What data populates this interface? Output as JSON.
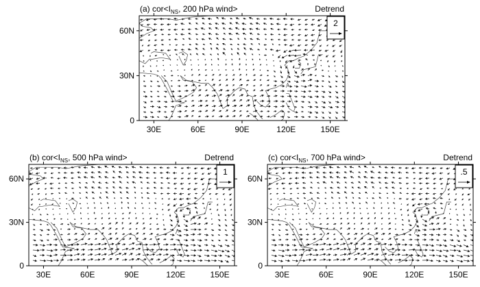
{
  "panels": [
    {
      "id": "a",
      "title_prefix": "(a) cor<I",
      "title_sub": "NS",
      "title_suffix": ", 200 hPa wind>",
      "tag": "Detrend",
      "ref_vector": "2",
      "x_ticks": [
        "30E",
        "60E",
        "90E",
        "120E",
        "150E"
      ],
      "y_ticks": [
        "0",
        "30N",
        "60N"
      ]
    },
    {
      "id": "b",
      "title_prefix": "(b) cor<I",
      "title_sub": "NS",
      "title_suffix": ", 500 hPa wind>",
      "tag": "Detrend",
      "ref_vector": "1",
      "x_ticks": [
        "30E",
        "60E",
        "90E",
        "120E",
        "150E"
      ],
      "y_ticks": [
        "0",
        "30N",
        "60N"
      ]
    },
    {
      "id": "c",
      "title_prefix": "(c) cor<I",
      "title_sub": "NS",
      "title_suffix": ", 700 hPa wind>",
      "tag": "Detrend",
      "ref_vector": ".5",
      "x_ticks": [
        "30E",
        "60E",
        "90E",
        "120E",
        "150E"
      ],
      "y_ticks": [
        "0",
        "30N",
        "60N"
      ]
    }
  ],
  "map_extent": {
    "lon": [
      20,
      160
    ],
    "lat": [
      0,
      70
    ]
  },
  "colors": {
    "frame": "#000000",
    "vectors": "#1a1a1a",
    "coast": "#444444"
  }
}
